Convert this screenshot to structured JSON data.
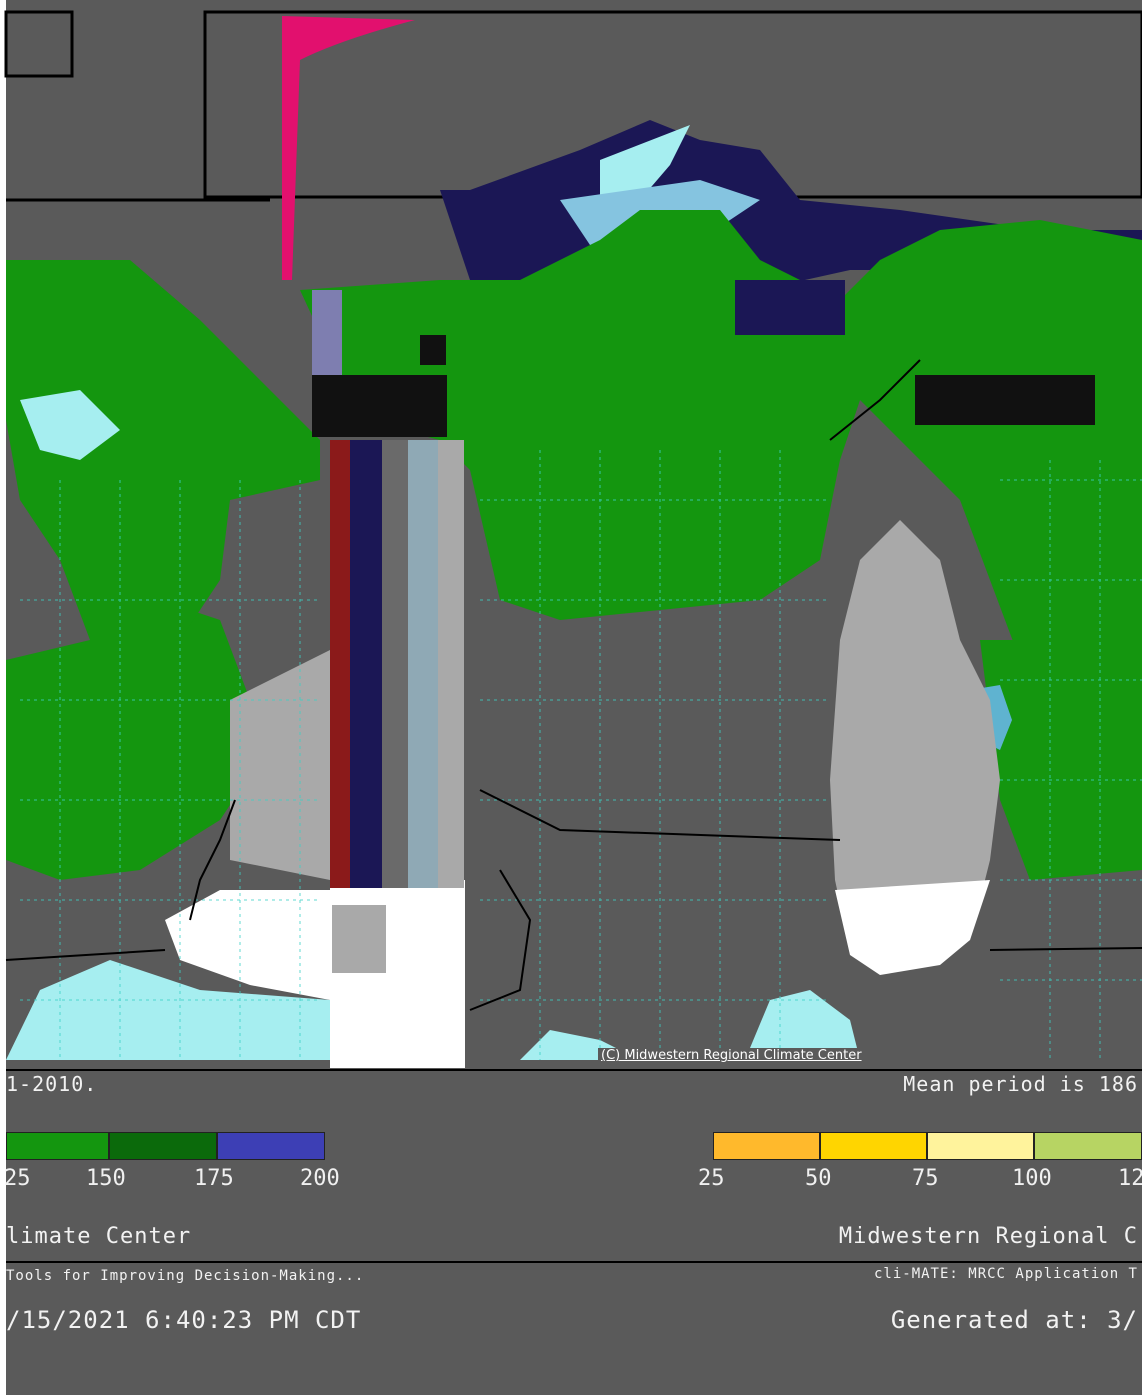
{
  "map": {
    "credit": "(C) Midwestern Regional Climate Center"
  },
  "footer": {
    "left_period": "1-2010.",
    "right_period": "Mean period is 186",
    "org_left": "limate Center",
    "org_right": "Midwestern Regional C",
    "tool_left": "Tools for Improving Decision-Making...",
    "tool_right": "cli-MATE: MRCC Application T",
    "generated_left": "/15/2021 6:40:23 PM CDT",
    "generated_right": "Generated at: 3/"
  },
  "legend_left": {
    "ticks": [
      "25",
      "150",
      "175",
      "200"
    ],
    "colors": [
      "#14960f",
      "#0b6a0b",
      "#3d3fb5"
    ]
  },
  "legend_right": {
    "ticks": [
      "25",
      "50",
      "75",
      "100",
      "12"
    ],
    "colors": [
      "#ffb92c",
      "#ffd500",
      "#fff39c",
      "#b7d463"
    ]
  },
  "colors": {
    "background": "#5a5a5a",
    "green": "#14960f",
    "dark_green": "#0b6a0b",
    "light_cyan": "#a6eef0",
    "white": "#ffffff",
    "magenta": "#e2106e",
    "navy": "#1b1755",
    "gray_water": "#a9a9a9"
  }
}
